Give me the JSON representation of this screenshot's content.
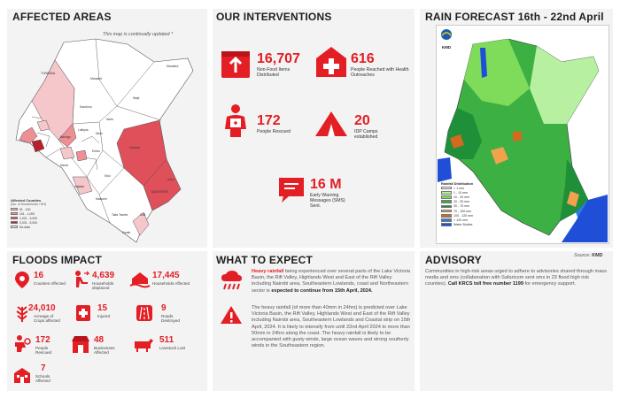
{
  "colors": {
    "accent": "#e31e24",
    "panel": "#f3f3f3",
    "map_flood": "#e0505a",
    "map_light": "#f5c7cb"
  },
  "affected_areas": {
    "title": "AFFECTED AREAS",
    "note": "This map is continually updated *",
    "county_labels": [
      "TURKANA",
      "Marsabit",
      "Wajir",
      "Isiolo",
      "Samburu",
      "Garissa",
      "TANA RIVER",
      "Kitui",
      "Laikipia",
      "Meru",
      "Embu",
      "Makueni",
      "Kajiado",
      "Taita Taveta",
      "Kwale",
      "Mandera",
      "Baringo",
      "Kilifi",
      "Lamu",
      "Narok"
    ],
    "legend_title": "Affected Counties",
    "legend_subtitle": "(No. of Households / HH)",
    "legend_items": [
      {
        "label": "51 - 100",
        "color": "#f5c7cb"
      },
      {
        "label": "101 - 1,000",
        "color": "#ee8f96"
      },
      {
        "label": "1,001 - 3,000",
        "color": "#e0505a"
      },
      {
        "label": "3,001 - 5,000",
        "color": "#b8202a"
      },
      {
        "label": "No data",
        "color": "#ffffff"
      }
    ]
  },
  "interventions": {
    "title": "OUR INTERVENTIONS",
    "items": [
      {
        "value": "16,707",
        "label": "Non-Food Items Distributed",
        "icon": "box-icon"
      },
      {
        "value": "616",
        "label": "People Reached with Health Outreaches",
        "icon": "medical-cross-icon"
      },
      {
        "value": "172",
        "label": "People Rescued",
        "icon": "rescuer-icon"
      },
      {
        "value": "20",
        "label": "IDP Camps established",
        "icon": "tent-icon"
      },
      {
        "value": "16 M",
        "label": "Early Warning Messages (SMS) Sent.",
        "icon": "sms-icon"
      }
    ]
  },
  "rain_forecast": {
    "title": "RAIN FORECAST 16th  - 22nd April",
    "logo": "KMD",
    "source_label": "Source:",
    "source_value": "KMD",
    "legend_title": "Rainfall Distribution",
    "legend_items": [
      {
        "label": "< 1 mm",
        "color": "#ffffff"
      },
      {
        "label": "1 - 10 mm",
        "color": "#b7f0a0"
      },
      {
        "label": "10 - 20 mm",
        "color": "#7fdc5a"
      },
      {
        "label": "20 - 30 mm",
        "color": "#3cb043"
      },
      {
        "label": "30 - 70 mm",
        "color": "#1f8f3a"
      },
      {
        "label": "70 - 100 mm",
        "color": "#f2a14d"
      },
      {
        "label": "100 - 120 mm",
        "color": "#d46a1e"
      },
      {
        "label": "> 120 mm",
        "color": "#2a7de1"
      },
      {
        "label": "Water Bodies",
        "color": "#1f4fd6"
      }
    ]
  },
  "floods_impact": {
    "title": "FLOODS IMPACT",
    "items": [
      {
        "value": "16",
        "label": "Counties Affected",
        "icon": "pin-icon"
      },
      {
        "value": "4,639",
        "label": "Households displaced",
        "icon": "displaced-icon"
      },
      {
        "value": "17,445",
        "label": "Households Affected",
        "icon": "flooded-house-icon"
      },
      {
        "value": "24,010",
        "label": "Acreage of Crops affected",
        "icon": "crops-icon"
      },
      {
        "value": "15",
        "label": "Injured",
        "icon": "injured-icon"
      },
      {
        "value": "9",
        "label": "Roads Destroyed",
        "icon": "road-icon"
      },
      {
        "value": "172",
        "label": "People Rescued",
        "icon": "rescue-icon"
      },
      {
        "value": "48",
        "label": "Businesses Affected",
        "icon": "business-icon"
      },
      {
        "value": "511",
        "label": "Livestock Lost",
        "icon": "livestock-icon"
      },
      {
        "value": "7",
        "label": "Schools Affected",
        "icon": "school-icon"
      }
    ]
  },
  "what_to_expect": {
    "title": "WHAT TO EXPECT",
    "p1_lead": "Heavy rainfall",
    "p1_body": " being experienced over several parts of the Lake Victoria Basin, the Rift Valley, Highlands West and East of the Rift Valley including Nairobi area, Southeastern Lowlands, coast and Northeastern sector is ",
    "p1_bold": "expected to continue from 15th April, 2024.",
    "p2": "The heavy rainfall (of more than 40mm in 24hrs) is predicted over Lake Victoria Basin, the Rift Valley, Highlands West and East of the Rift Valley including Nairobi area, Southeastern Lowlands and Coastal strip on 15th April, 2024. It is likely to intensify from until 22nd April 2024 to more than 50mm in 24hrs along the coast. The heavy rainfall is likely to be accompanied with gusty winds, large ocean waves and strong southerly winds in the Southeastern region."
  },
  "advisory": {
    "title": "ADVISORY",
    "body": "Communities in high-risk areas urged to adhere to advisories shared through mass media and sms (collaboration with Safaricom sent sms in 23 flood high risk counties). ",
    "call": "Call KRCS toll free number 1199",
    "tail": " for emergency support."
  }
}
